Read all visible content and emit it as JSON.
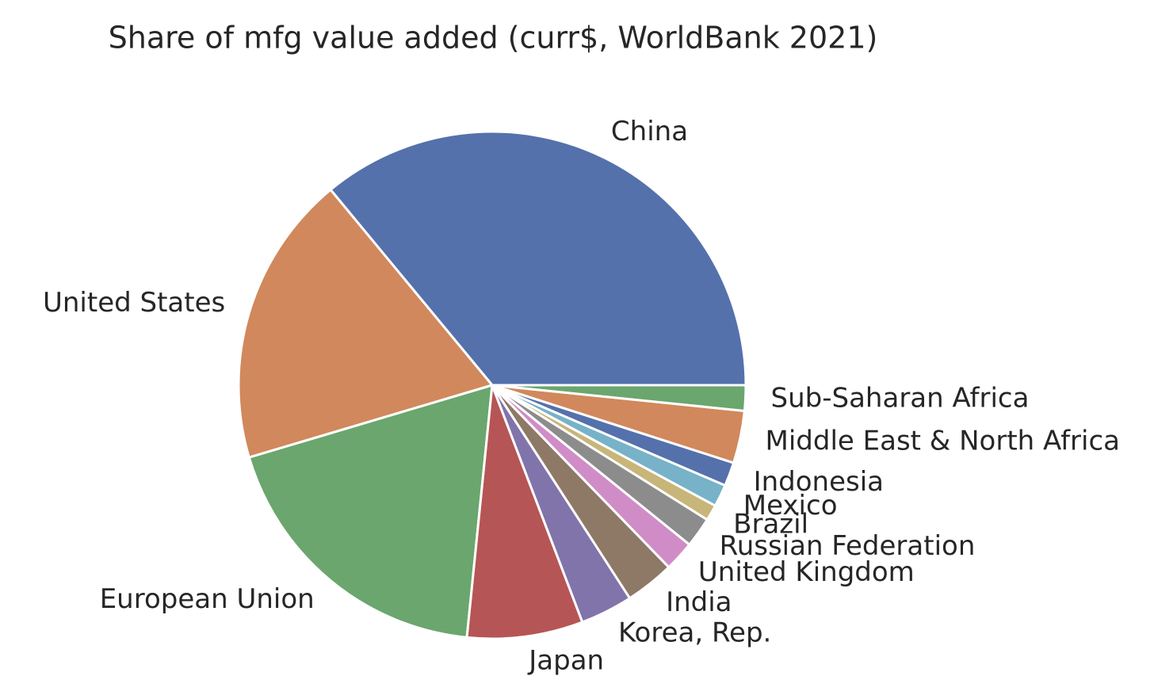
{
  "chart_data": {
    "type": "pie",
    "title": "Share of mfg value added (curr$, WorldBank 2021)",
    "categories": [
      "China",
      "United States",
      "European Union",
      "Japan",
      "Korea, Rep.",
      "India",
      "United Kingdom",
      "Russian Federation",
      "Brazil",
      "Mexico",
      "Indonesia",
      "Middle East & North Africa",
      "Sub-Saharan Africa"
    ],
    "values": [
      35.6,
      18.4,
      18.6,
      7.3,
      3.3,
      3.1,
      1.9,
      1.9,
      1.0,
      1.4,
      1.5,
      3.3,
      1.6
    ],
    "colors": [
      "#5471ab",
      "#d1885c",
      "#6aa66e",
      "#b65555",
      "#8174aa",
      "#8d7966",
      "#d08cc7",
      "#8c8c8c",
      "#c8b579",
      "#77b2c9",
      "#5471ab",
      "#d1885c",
      "#6aa66e"
    ],
    "start_angle": 0,
    "direction": "counterclockwise"
  }
}
